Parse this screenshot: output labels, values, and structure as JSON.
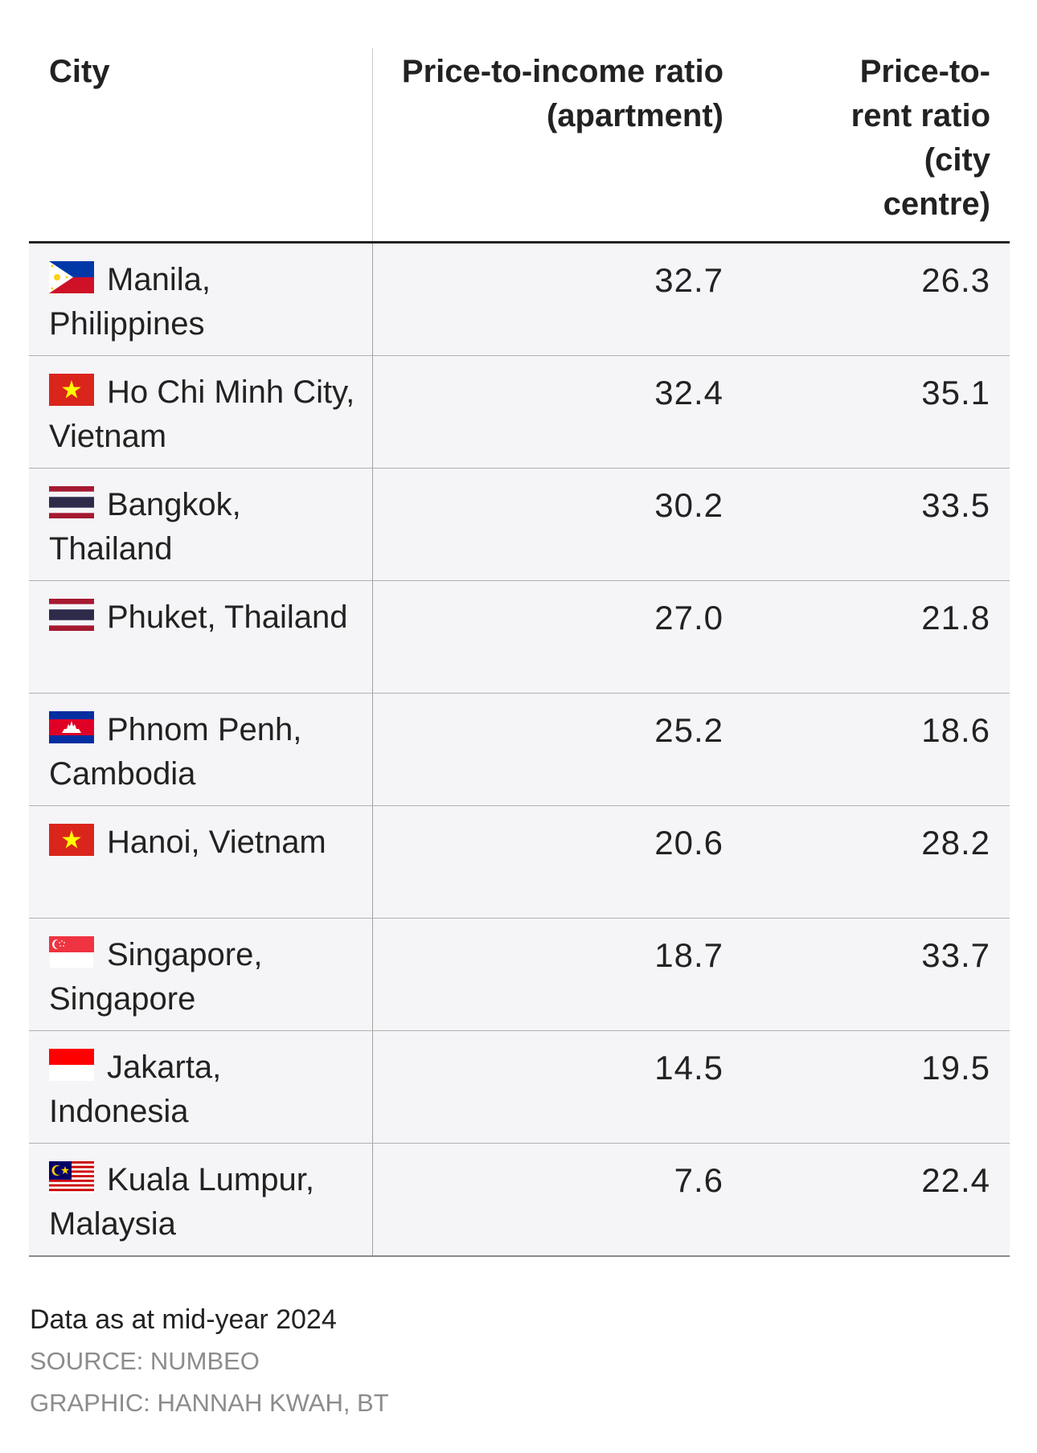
{
  "chart_data": {
    "type": "table",
    "columns": [
      "City",
      "Price-to-income ratio (apartment)",
      "Price-to-rent ratio (city centre)"
    ],
    "rows": [
      {
        "city": "Manila, Philippines",
        "flag": "philippines-flag-icon",
        "price_to_income": "32.7",
        "price_to_rent": "26.3"
      },
      {
        "city": "Ho Chi Minh City, Vietnam",
        "flag": "vietnam-flag-icon",
        "price_to_income": "32.4",
        "price_to_rent": "35.1"
      },
      {
        "city": "Bangkok, Thailand",
        "flag": "thailand-flag-icon",
        "price_to_income": "30.2",
        "price_to_rent": "33.5"
      },
      {
        "city": "Phuket, Thailand",
        "flag": "thailand-flag-icon",
        "price_to_income": "27.0",
        "price_to_rent": "21.8"
      },
      {
        "city": "Phnom Penh, Cambodia",
        "flag": "cambodia-flag-icon",
        "price_to_income": "25.2",
        "price_to_rent": "18.6"
      },
      {
        "city": "Hanoi, Vietnam",
        "flag": "vietnam-flag-icon",
        "price_to_income": "20.6",
        "price_to_rent": "28.2"
      },
      {
        "city": "Singapore, Singapore",
        "flag": "singapore-flag-icon",
        "price_to_income": "18.7",
        "price_to_rent": "33.7"
      },
      {
        "city": "Jakarta, Indonesia",
        "flag": "indonesia-flag-icon",
        "price_to_income": "14.5",
        "price_to_rent": "19.5"
      },
      {
        "city": "Kuala Lumpur, Malaysia",
        "flag": "malaysia-flag-icon",
        "price_to_income": "7.6",
        "price_to_rent": "22.4"
      }
    ]
  },
  "footer": {
    "note": "Data as at mid-year 2024",
    "source": "SOURCE: NUMBEO",
    "graphic": "GRAPHIC: HANNAH KWAH, BT"
  },
  "colors": {
    "row_background": "#f5f5f7",
    "text": "#222222",
    "muted_text": "#8c8c8c"
  }
}
